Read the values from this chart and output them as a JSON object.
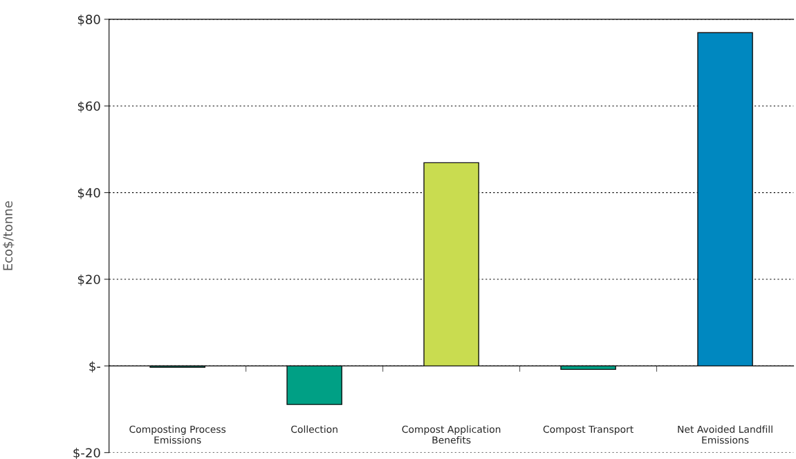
{
  "chart_data": {
    "type": "bar",
    "ylabel": "Eco$/tonne",
    "categories": [
      "Composting Process\nEmissions",
      "Collection",
      "Compost Application\nBenefits",
      "Compost Transport",
      "Net Avoided Landfill\nEmissions"
    ],
    "values": [
      -0.3,
      -8.9,
      46.9,
      -0.8,
      76.9
    ],
    "colors": [
      "#00a085",
      "#00a085",
      "#c9dc50",
      "#00a085",
      "#0088c0"
    ],
    "ylim": [
      -20,
      80
    ],
    "yticks": [
      {
        "value": -20,
        "label": "$-20"
      },
      {
        "value": 0,
        "label": "$-"
      },
      {
        "value": 20,
        "label": "$20"
      },
      {
        "value": 40,
        "label": "$40"
      },
      {
        "value": 60,
        "label": "$60"
      },
      {
        "value": 80,
        "label": "$80"
      }
    ],
    "grid": "y"
  }
}
